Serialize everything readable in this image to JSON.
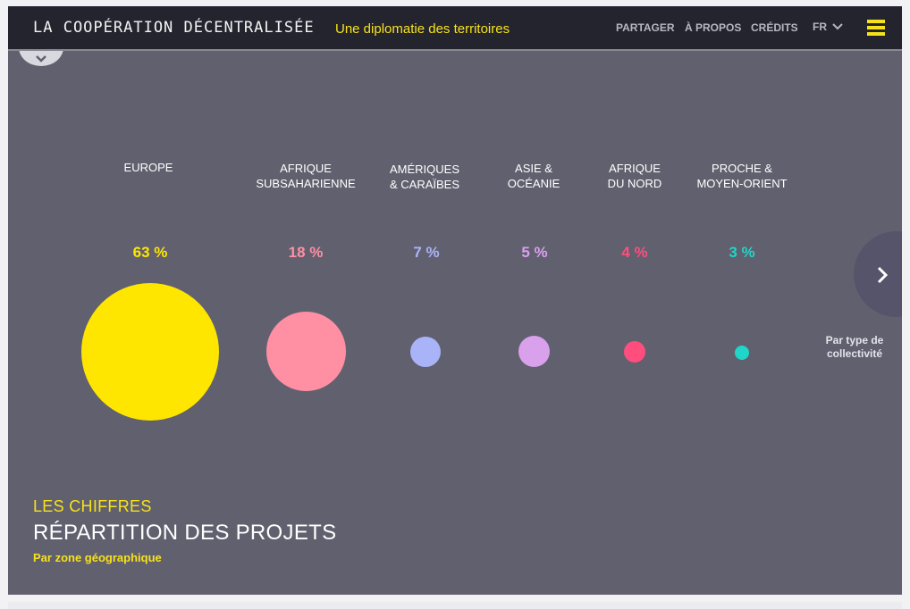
{
  "header": {
    "brand": "LA COOPÉRATION DÉCENTRALISÉE",
    "tagline": "Une diplomatie des territoires",
    "nav": {
      "share": "PARTAGER",
      "about": "À PROPOS",
      "credits": "CRÉDITS",
      "language": "FR"
    },
    "menu_icon": "hamburger-menu-icon",
    "accent_color": "#f6e21b"
  },
  "regions": [
    {
      "label_line1": "EUROPE",
      "label_line2": "",
      "percent_text": "63 %",
      "value": 63,
      "color": "#ffe600"
    },
    {
      "label_line1": "AFRIQUE",
      "label_line2": "SUBSAHARIENNE",
      "percent_text": "18 %",
      "value": 18,
      "color": "#ff8fa3"
    },
    {
      "label_line1": "AMÉRIQUES",
      "label_line2": "& CARAÏBES",
      "percent_text": "7 %",
      "value": 7,
      "color": "#a9b4f8"
    },
    {
      "label_line1": "ASIE &",
      "label_line2": "OCÉANIE",
      "percent_text": "5 %",
      "value": 5,
      "color": "#d9a0ec"
    },
    {
      "label_line1": "AFRIQUE",
      "label_line2": "DU NORD",
      "percent_text": "4 %",
      "value": 4,
      "color": "#ff4d7d"
    },
    {
      "label_line1": "PROCHE &",
      "label_line2": "MOYEN-ORIENT",
      "percent_text": "3 %",
      "value": 3,
      "color": "#1fd6c8"
    }
  ],
  "next": {
    "caption_line1": "Par type de",
    "caption_line2": "collectivité",
    "icon": "chevron-right-icon"
  },
  "section": {
    "kicker": "LES CHIFFRES",
    "title": "RÉPARTITION DES PROJETS",
    "subtitle": "Par zone géographique"
  },
  "panel_color": "#61606f"
}
